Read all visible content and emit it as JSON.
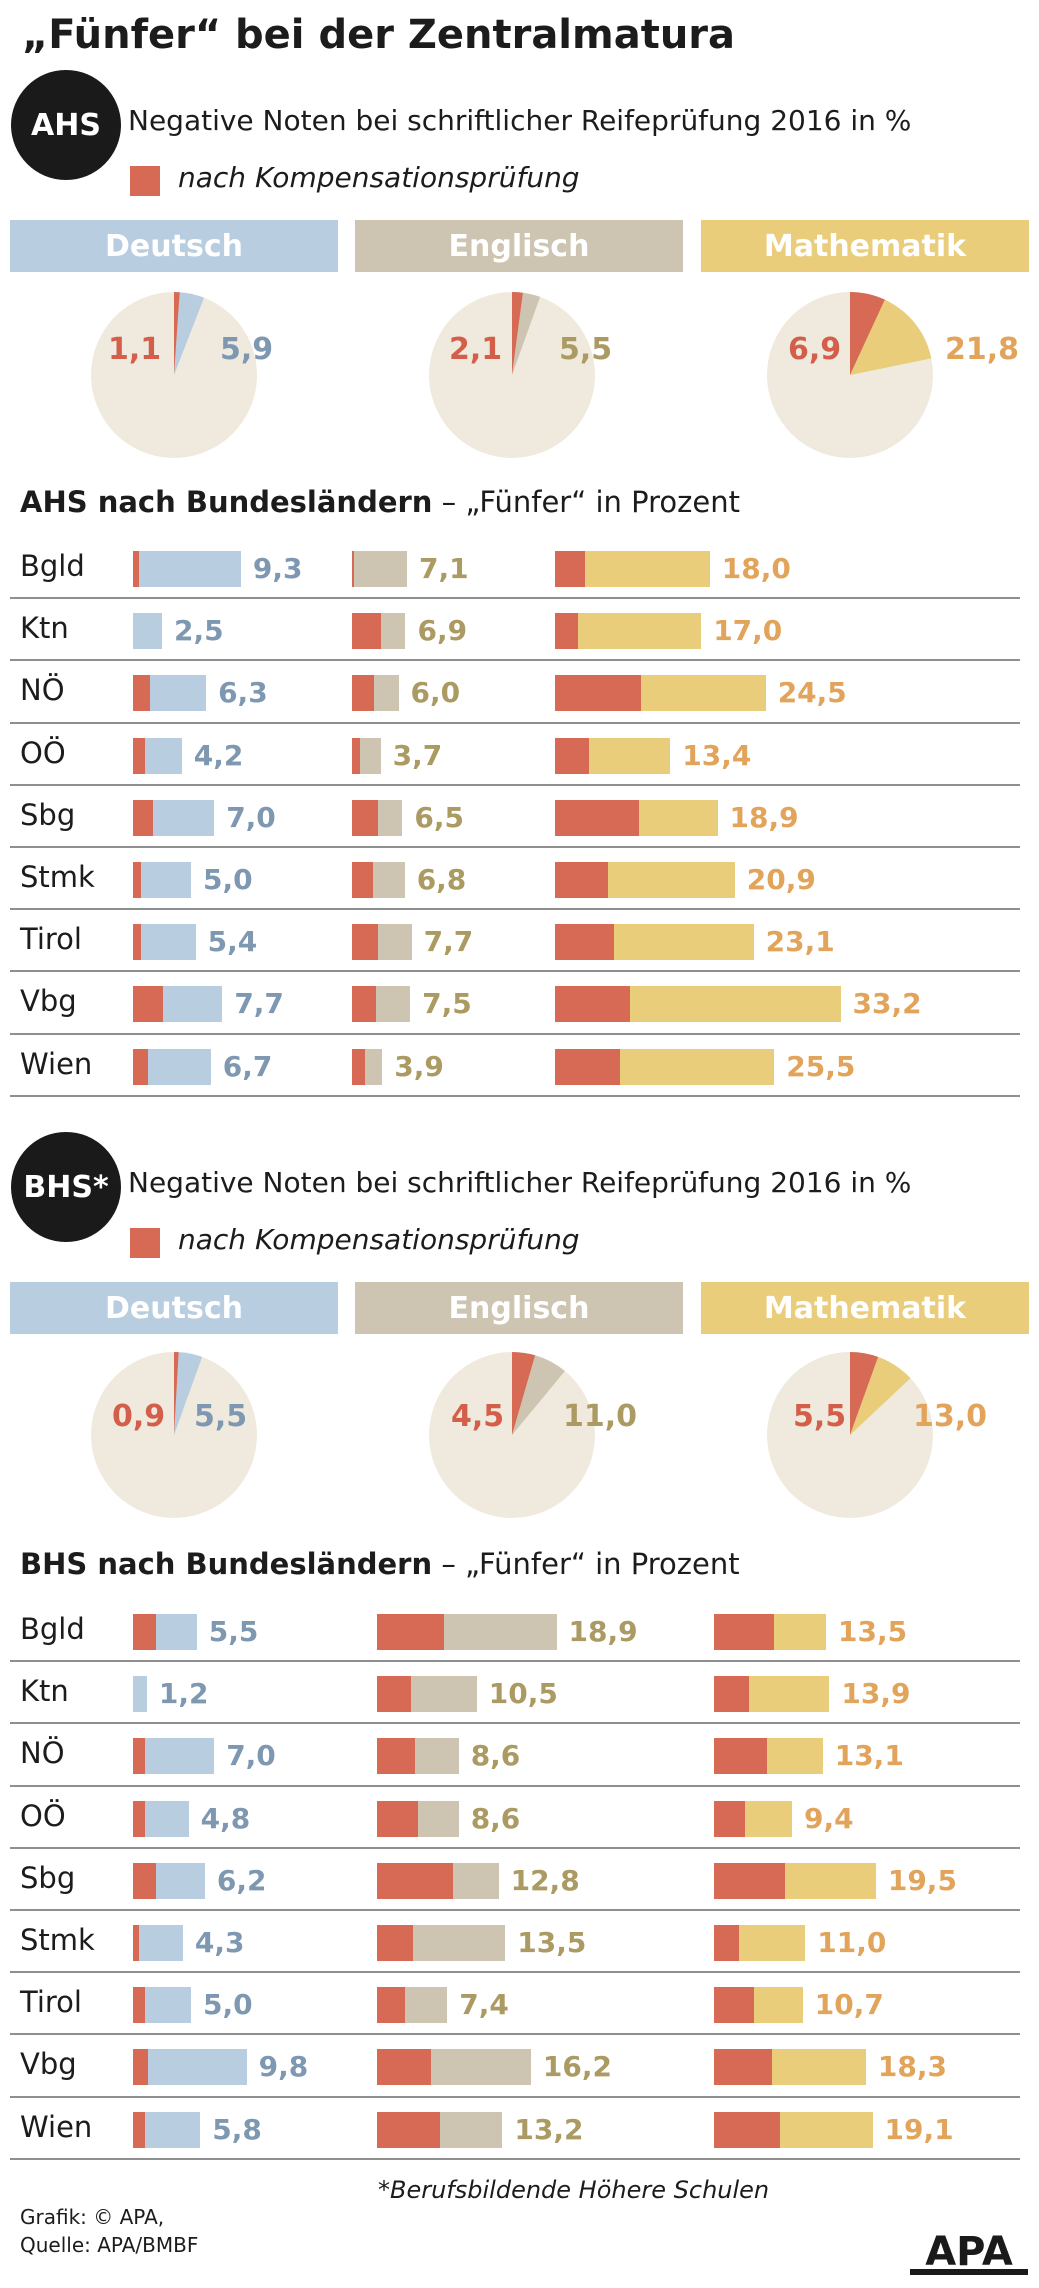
{
  "title": "„Fünfer“ bei der Zentralmatura",
  "colors": {
    "red": "#d66a55",
    "deutsch": "#b9cde0",
    "englisch": "#cdc5b1",
    "mathematik": "#e9cd7a",
    "deutsch_text": "#7e98b2",
    "englisch_text": "#ab9a62",
    "mathematik_text": "#e2a45b",
    "red_text": "#d35f4b",
    "pie_bg": "#efeadd"
  },
  "legend_label": "nach Kompensationsprüfung",
  "footnote": "*Berufsbildende Höhere Schulen",
  "credit": {
    "grafik": "Grafik: © APA,",
    "quelle": "Quelle: APA/BMBF",
    "logo": "APA"
  },
  "chart_data": [
    {
      "type": "pie",
      "section": "ahs",
      "badge": "AHS",
      "subtitle": "Negative Noten bei schriftlicher Reifeprüfung 2016 in %",
      "subjects": [
        {
          "name": "Deutsch",
          "key": "deutsch",
          "kompensation": 1.1,
          "kompensation_label": "1,1",
          "total": 5.9,
          "total_label": "5,9"
        },
        {
          "name": "Englisch",
          "key": "englisch",
          "kompensation": 2.1,
          "kompensation_label": "2,1",
          "total": 5.5,
          "total_label": "5,5"
        },
        {
          "name": "Mathematik",
          "key": "mathematik",
          "kompensation": 6.9,
          "kompensation_label": "6,9",
          "total": 21.8,
          "total_label": "21,8"
        }
      ]
    },
    {
      "type": "bar",
      "section": "ahs",
      "title_bold": "AHS nach Bundesländern",
      "title_rest": " – „Fünfer“ in Prozent",
      "categories": [
        "Bgld",
        "Ktn",
        "NÖ",
        "OÖ",
        "Sbg",
        "Stmk",
        "Tirol",
        "Vbg",
        "Wien"
      ],
      "series": [
        {
          "name": "Deutsch",
          "key": "deutsch",
          "values": [
            9.3,
            2.5,
            6.3,
            4.2,
            7.0,
            5.0,
            5.4,
            7.7,
            6.7
          ],
          "labels": [
            "9,3",
            "2,5",
            "6,3",
            "4,2",
            "7,0",
            "5,0",
            "5,4",
            "7,7",
            "6,7"
          ],
          "kompensation": [
            0.5,
            0.0,
            1.5,
            1.0,
            1.7,
            0.7,
            0.7,
            2.6,
            1.3
          ]
        },
        {
          "name": "Englisch",
          "key": "englisch",
          "values": [
            7.1,
            6.9,
            6.0,
            3.7,
            6.5,
            6.8,
            7.7,
            7.5,
            3.9
          ],
          "labels": [
            "7,1",
            "6,9",
            "6,0",
            "3,7",
            "6,5",
            "6,8",
            "7,7",
            "7,5",
            "3,9"
          ],
          "kompensation": [
            0.2,
            3.8,
            2.8,
            1.0,
            3.4,
            2.7,
            3.4,
            3.1,
            1.7
          ]
        },
        {
          "name": "Mathematik",
          "key": "mathematik",
          "values": [
            18.0,
            17.0,
            24.5,
            13.4,
            18.9,
            20.9,
            23.1,
            33.2,
            25.5
          ],
          "labels": [
            "18,0",
            "17,0",
            "24,5",
            "13,4",
            "18,9",
            "20,9",
            "23,1",
            "33,2",
            "25,5"
          ],
          "kompensation": [
            3.5,
            2.7,
            10.0,
            3.9,
            9.8,
            6.2,
            6.9,
            8.7,
            7.5
          ]
        }
      ]
    },
    {
      "type": "pie",
      "section": "bhs",
      "badge": "BHS*",
      "subtitle": "Negative Noten bei schriftlicher Reifeprüfung 2016 in %",
      "subjects": [
        {
          "name": "Deutsch",
          "key": "deutsch",
          "kompensation": 0.9,
          "kompensation_label": "0,9",
          "total": 5.5,
          "total_label": "5,5"
        },
        {
          "name": "Englisch",
          "key": "englisch",
          "kompensation": 4.5,
          "kompensation_label": "4,5",
          "total": 11.0,
          "total_label": "11,0"
        },
        {
          "name": "Mathematik",
          "key": "mathematik",
          "kompensation": 5.5,
          "kompensation_label": "5,5",
          "total": 13.0,
          "total_label": "13,0"
        }
      ]
    },
    {
      "type": "bar",
      "section": "bhs",
      "title_bold": "BHS nach Bundesländern",
      "title_rest": " – „Fünfer“ in Prozent",
      "categories": [
        "Bgld",
        "Ktn",
        "NÖ",
        "OÖ",
        "Sbg",
        "Stmk",
        "Tirol",
        "Vbg",
        "Wien"
      ],
      "series": [
        {
          "name": "Deutsch",
          "key": "deutsch",
          "values": [
            5.5,
            1.2,
            7.0,
            4.8,
            6.2,
            4.3,
            5.0,
            9.8,
            5.8
          ],
          "labels": [
            "5,5",
            "1,2",
            "7,0",
            "4,8",
            "6,2",
            "4,3",
            "5,0",
            "9,8",
            "5,8"
          ],
          "kompensation": [
            2.0,
            0.0,
            1.0,
            1.0,
            2.0,
            0.5,
            1.0,
            1.3,
            1.0
          ]
        },
        {
          "name": "Englisch",
          "key": "englisch",
          "values": [
            18.9,
            10.5,
            8.6,
            8.6,
            12.8,
            13.5,
            7.4,
            16.2,
            13.2
          ],
          "labels": [
            "18,9",
            "10,5",
            "8,6",
            "8,6",
            "12,8",
            "13,5",
            "7,4",
            "16,2",
            "13,2"
          ],
          "kompensation": [
            7.0,
            3.6,
            4.0,
            4.3,
            8.0,
            3.8,
            2.9,
            5.7,
            6.6
          ]
        },
        {
          "name": "Mathematik",
          "key": "mathematik",
          "values": [
            13.5,
            13.9,
            13.1,
            9.4,
            19.5,
            11.0,
            10.7,
            18.3,
            19.1
          ],
          "labels": [
            "13,5",
            "13,9",
            "13,1",
            "9,4",
            "19,5",
            "11,0",
            "10,7",
            "18,3",
            "19,1"
          ],
          "kompensation": [
            7.2,
            4.2,
            6.4,
            3.7,
            8.6,
            3.0,
            4.8,
            7.0,
            8.0
          ]
        }
      ]
    }
  ]
}
